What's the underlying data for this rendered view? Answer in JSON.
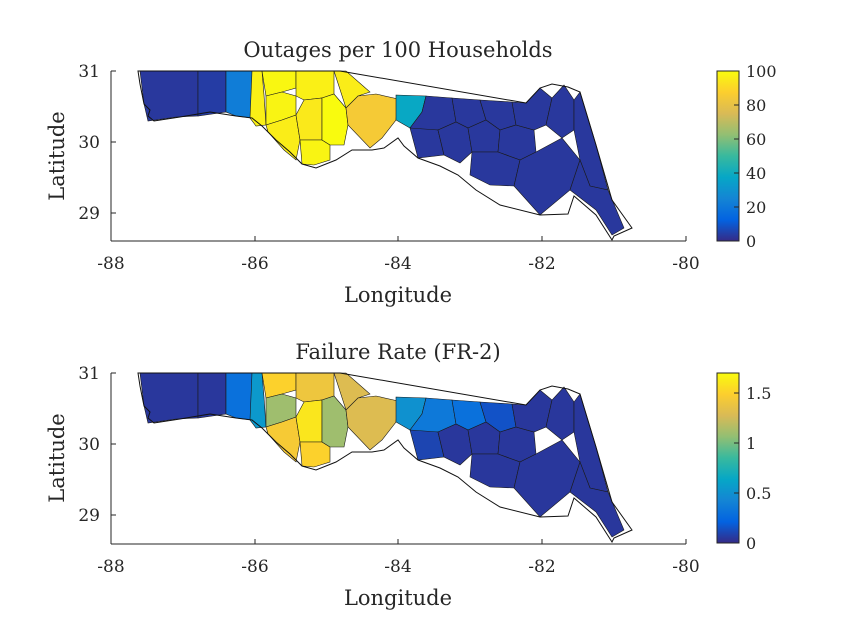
{
  "panels": [
    {
      "id": "outages",
      "title": "Outages per 100 Households",
      "xlabel": "Longitude",
      "ylabel": "Latitude",
      "xticks": [
        "-88",
        "-86",
        "-84",
        "-82",
        "-80"
      ],
      "yticks": [
        "31",
        "30",
        "29"
      ],
      "colorbar": {
        "min": 0,
        "max": 100,
        "ticks": [
          "100",
          "80",
          "60",
          "40",
          "20",
          "0"
        ]
      }
    },
    {
      "id": "failure",
      "title": "Failure Rate (FR-2)",
      "xlabel": "Longitude",
      "ylabel": "Latitude",
      "xticks": [
        "-88",
        "-86",
        "-84",
        "-82",
        "-80"
      ],
      "yticks": [
        "31",
        "30",
        "29"
      ],
      "colorbar": {
        "min": 0,
        "max": 1.7,
        "ticks": [
          "1.5",
          "1",
          "0.5",
          "0"
        ]
      }
    }
  ],
  "chart_data": [
    {
      "type": "choropleth",
      "title": "Outages per 100 Households",
      "xlabel": "Longitude",
      "ylabel": "Latitude",
      "xlim": [
        -88,
        -80
      ],
      "ylim": [
        28.6,
        31
      ],
      "colormap": "parula",
      "clim": [
        0,
        100
      ],
      "regions": [
        {
          "value": 3
        },
        {
          "value": 4
        },
        {
          "value": 4
        },
        {
          "value": 22
        },
        {
          "value": 97
        },
        {
          "value": 99
        },
        {
          "value": 98
        },
        {
          "value": 97
        },
        {
          "value": 96
        },
        {
          "value": 95
        },
        {
          "value": 98
        },
        {
          "value": 100
        },
        {
          "value": 96
        },
        {
          "value": 85
        },
        {
          "value": 38
        },
        {
          "value": 3
        },
        {
          "value": 3
        },
        {
          "value": 3
        },
        {
          "value": 3
        },
        {
          "value": 3
        },
        {
          "value": 3
        },
        {
          "value": 3
        },
        {
          "value": 3
        },
        {
          "value": 3
        },
        {
          "value": 3
        },
        {
          "value": 3
        },
        {
          "value": 3
        },
        {
          "value": 3
        }
      ]
    },
    {
      "type": "choropleth",
      "title": "Failure Rate (FR-2)",
      "xlabel": "Longitude",
      "ylabel": "Latitude",
      "xlim": [
        -88,
        -80
      ],
      "ylim": [
        28.6,
        31
      ],
      "colormap": "parula",
      "clim": [
        0,
        1.7
      ],
      "regions": [
        {
          "value": 0.05
        },
        {
          "value": 0.05
        },
        {
          "value": 0.08
        },
        {
          "value": 0.3
        },
        {
          "value": 0.55
        },
        {
          "value": 1.5
        },
        {
          "value": 1.1
        },
        {
          "value": 1.4
        },
        {
          "value": 1.45
        },
        {
          "value": 1.6
        },
        {
          "value": 1.5
        },
        {
          "value": 1.1
        },
        {
          "value": 1.3
        },
        {
          "value": 1.3
        },
        {
          "value": 0.5
        },
        {
          "value": 0.35
        },
        {
          "value": 0.3
        },
        {
          "value": 0.15
        },
        {
          "value": 0.1
        },
        {
          "value": 0.05
        },
        {
          "value": 0.05
        },
        {
          "value": 0.05
        },
        {
          "value": 0.05
        },
        {
          "value": 0.05
        },
        {
          "value": 0.05
        },
        {
          "value": 0.05
        },
        {
          "value": 0.05
        },
        {
          "value": 0.05
        }
      ]
    }
  ]
}
